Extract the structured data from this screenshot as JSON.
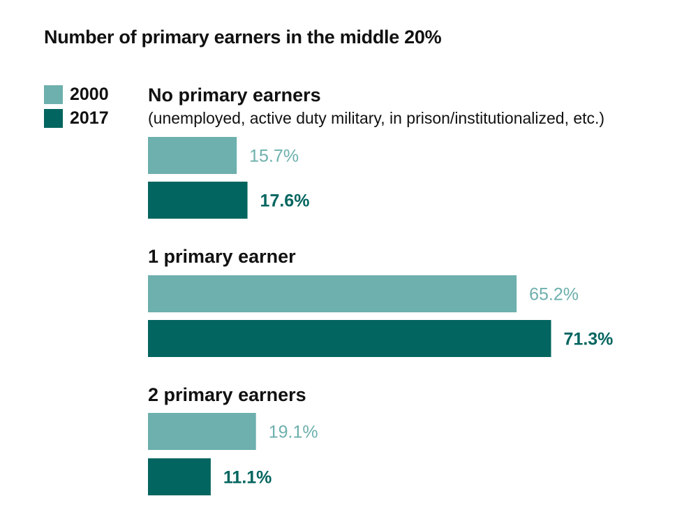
{
  "chart_data": {
    "type": "bar",
    "orientation": "horizontal",
    "title": "Number of primary earners in the middle 20%",
    "categories": [
      "No primary earners",
      "1 primary earner",
      "2 primary earners"
    ],
    "category_notes": [
      "(unemployed, active duty military, in prison/institutionalized, etc.)",
      "",
      ""
    ],
    "series": [
      {
        "name": "2000",
        "values": [
          15.7,
          65.2,
          19.1
        ],
        "labels": [
          "15.7%",
          "65.2%",
          "19.1%"
        ],
        "color": "#6db0ad"
      },
      {
        "name": "2017",
        "values": [
          17.6,
          71.3,
          11.1
        ],
        "labels": [
          "17.6%",
          "71.3%",
          "11.1%"
        ],
        "color": "#03655f"
      }
    ],
    "xlim": [
      0,
      100
    ],
    "unit": "%",
    "grid": false,
    "legend_position": "top-left"
  }
}
